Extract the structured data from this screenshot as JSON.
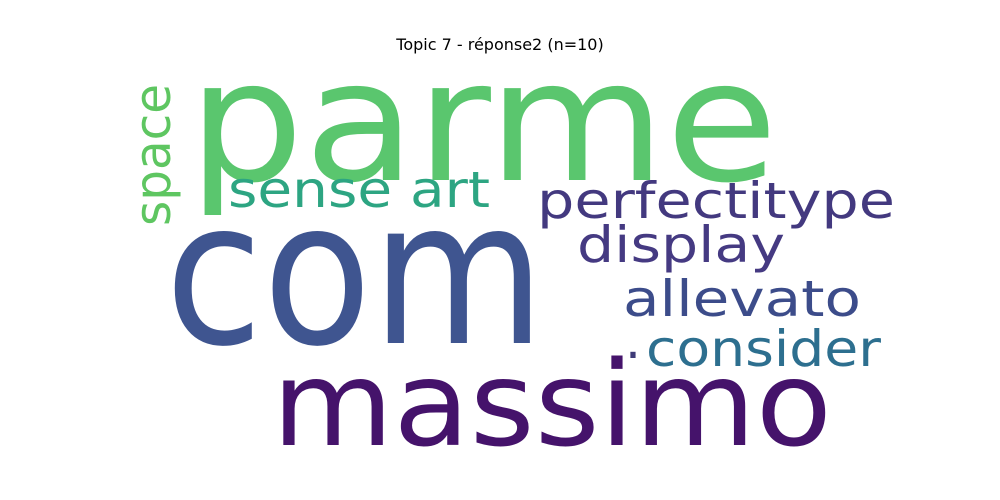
{
  "title": "Topic 7 - réponse2 (n=10)",
  "words": [
    {
      "text": "parme",
      "color": "#5ac66e"
    },
    {
      "text": "com",
      "color": "#3f5590"
    },
    {
      "text": "massimo",
      "color": "#45136b"
    },
    {
      "text": "sense art",
      "color": "#2da582"
    },
    {
      "text": "space",
      "color": "#5ec661"
    },
    {
      "text": "perfectitype",
      "color": "#43397f"
    },
    {
      "text": "display",
      "color": "#453a82"
    },
    {
      "text": "allevato",
      "color": "#3c4c8a"
    },
    {
      "text": "consider",
      "color": "#2d6f8f"
    },
    {
      "text": ".",
      "color": "#3e3b78"
    }
  ]
}
